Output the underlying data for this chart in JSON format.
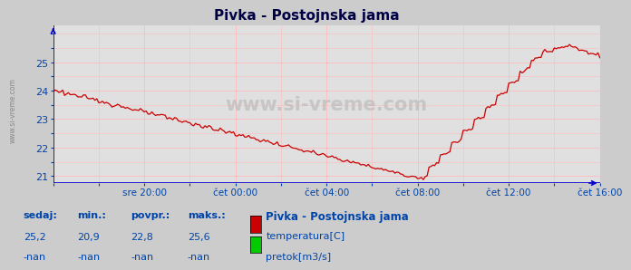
{
  "title": "Pivka - Postojnska jama",
  "bg_color": "#cccccc",
  "plot_bg_color": "#e0e0e0",
  "grid_color": "#ffbbbb",
  "line_color": "#cc0000",
  "axis_color": "#0000cc",
  "text_color": "#0044aa",
  "ylim": [
    20.75,
    26.3
  ],
  "yticks": [
    21,
    22,
    23,
    24,
    25
  ],
  "xtick_positions": [
    48,
    96,
    144,
    192,
    240,
    288
  ],
  "xtick_labels": [
    "sre 20:00",
    "čet 00:00",
    "čet 04:00",
    "čet 08:00",
    "čet 12:00",
    "čet 16:00"
  ],
  "footer_labels": [
    "sedaj:",
    "min.:",
    "povpr.:",
    "maks.:"
  ],
  "footer_values": [
    "25,2",
    "20,9",
    "22,8",
    "25,6"
  ],
  "footer_nan": [
    "-nan",
    "-nan",
    "-nan",
    "-nan"
  ],
  "legend_station": "Pivka - Postojnska jama",
  "legend_items": [
    "temperatura[C]",
    "pretok[m3/s]"
  ],
  "legend_colors": [
    "#cc0000",
    "#00cc00"
  ],
  "watermark": "www.si-vreme.com",
  "n_points": 289,
  "xmax": 288
}
